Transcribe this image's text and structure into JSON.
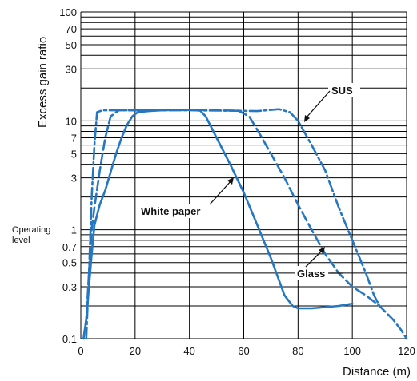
{
  "chart_data": {
    "type": "line",
    "xlabel": "Distance (m)",
    "ylabel": "Excess gain ratio",
    "xlim": [
      0,
      120
    ],
    "ylim": [
      0.1,
      100
    ],
    "yscale": "log",
    "grid": true,
    "x_ticks": [
      "0",
      "20",
      "40",
      "60",
      "80",
      "100",
      "120"
    ],
    "y_ticks": [
      "0.1",
      "0.3",
      "0.5",
      "0.7",
      "1",
      "3",
      "5",
      "7",
      "10",
      "30",
      "50",
      "70",
      "100"
    ],
    "operating_level_label": "Operating level",
    "operating_level_value": 1,
    "series": [
      {
        "name": "White paper",
        "style": "solid",
        "points": [
          [
            1,
            0.1
          ],
          [
            2,
            0.15
          ],
          [
            3,
            0.3
          ],
          [
            4,
            0.6
          ],
          [
            5,
            1.1
          ],
          [
            7,
            1.7
          ],
          [
            9,
            2.3
          ],
          [
            11,
            3.4
          ],
          [
            13,
            5
          ],
          [
            15,
            7
          ],
          [
            17,
            9.2
          ],
          [
            19,
            11
          ],
          [
            21,
            12
          ],
          [
            25,
            12.3
          ],
          [
            30,
            12.5
          ],
          [
            35,
            12.6
          ],
          [
            40,
            12.6
          ],
          [
            44,
            12.4
          ],
          [
            46,
            11
          ],
          [
            50,
            7
          ],
          [
            55,
            4
          ],
          [
            60,
            2.2
          ],
          [
            65,
            1.1
          ],
          [
            70,
            0.55
          ],
          [
            75,
            0.25
          ],
          [
            78,
            0.2
          ],
          [
            80,
            0.19
          ],
          [
            85,
            0.19
          ],
          [
            90,
            0.195
          ],
          [
            95,
            0.2
          ],
          [
            100,
            0.21
          ]
        ]
      },
      {
        "name": "SUS",
        "style": "dash-dot",
        "points": [
          [
            2,
            0.1
          ],
          [
            3,
            0.4
          ],
          [
            4,
            2
          ],
          [
            5,
            6
          ],
          [
            6,
            12
          ],
          [
            8,
            12.5
          ],
          [
            15,
            12.5
          ],
          [
            25,
            12.5
          ],
          [
            40,
            12.5
          ],
          [
            55,
            12.4
          ],
          [
            65,
            12.3
          ],
          [
            73,
            12.8
          ],
          [
            77,
            12
          ],
          [
            80,
            10
          ],
          [
            85,
            6
          ],
          [
            90,
            3.5
          ],
          [
            95,
            1.6
          ],
          [
            100,
            0.8
          ],
          [
            105,
            0.4
          ],
          [
            108,
            0.25
          ],
          [
            110,
            0.2
          ]
        ]
      },
      {
        "name": "Glass",
        "style": "dashed",
        "points": [
          [
            1,
            0.1
          ],
          [
            2,
            0.15
          ],
          [
            3,
            0.4
          ],
          [
            4,
            1
          ],
          [
            5,
            1.6
          ],
          [
            7,
            3.5
          ],
          [
            9,
            7
          ],
          [
            11,
            11
          ],
          [
            14,
            12.5
          ],
          [
            20,
            12.5
          ],
          [
            30,
            12.5
          ],
          [
            40,
            12.6
          ],
          [
            50,
            12.5
          ],
          [
            58,
            12.4
          ],
          [
            62,
            11
          ],
          [
            66,
            7.5
          ],
          [
            70,
            5
          ],
          [
            75,
            3
          ],
          [
            80,
            1.7
          ],
          [
            85,
            1.0
          ],
          [
            90,
            0.6
          ],
          [
            95,
            0.4
          ],
          [
            100,
            0.3
          ],
          [
            105,
            0.25
          ],
          [
            110,
            0.2
          ],
          [
            115,
            0.15
          ],
          [
            118,
            0.12
          ],
          [
            120,
            0.1
          ]
        ]
      }
    ],
    "annotations": [
      "SUS",
      "White paper",
      "Glass"
    ]
  }
}
